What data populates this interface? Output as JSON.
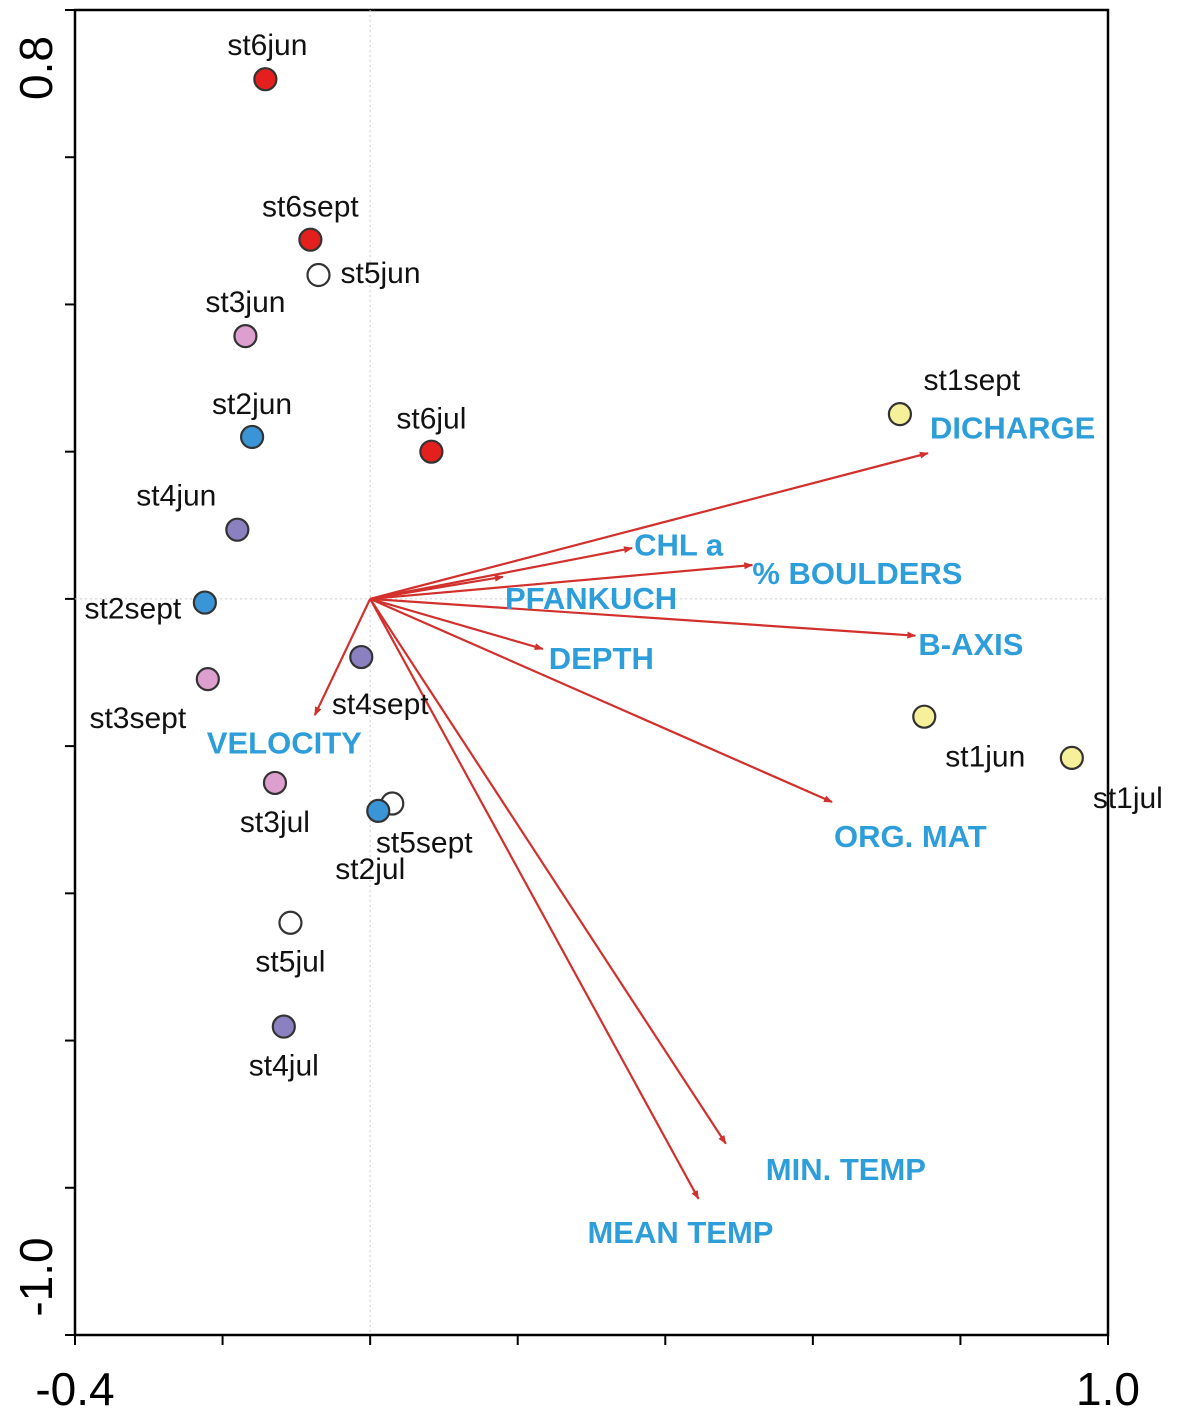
{
  "chart_data": {
    "type": "biplot",
    "xlim": [
      -0.4,
      1.0
    ],
    "ylim": [
      -1.0,
      0.8
    ],
    "xticks": [
      {
        "value": -0.4,
        "label": "-0.4"
      },
      {
        "value": 1.0,
        "label": "1.0"
      }
    ],
    "yticks": [
      0.8,
      {
        "value": -1.0,
        "label": "-1.0"
      }
    ],
    "xminor_ticks": [
      -0.2,
      0,
      0.2,
      0.4,
      0.6,
      0.8
    ],
    "yminor_ticks": [
      0.6,
      0.4,
      0.2,
      0,
      -0.2,
      -0.4,
      -0.6,
      -0.8
    ],
    "origin_lines": true,
    "arrow_color": "#d2302c",
    "arrow_label_color": "#2e9edb",
    "points": [
      {
        "name": "st6jun",
        "x": -0.142,
        "y": 0.706,
        "color": "#e3201d"
      },
      {
        "name": "st6sept",
        "x": -0.081,
        "y": 0.488,
        "color": "#e3201d"
      },
      {
        "name": "st5jun",
        "x": -0.07,
        "y": 0.44,
        "color": "#ffffff"
      },
      {
        "name": "st3jun",
        "x": -0.169,
        "y": 0.357,
        "color": "#dd9fcd"
      },
      {
        "name": "st2jun",
        "x": -0.16,
        "y": 0.22,
        "color": "#3a95d6"
      },
      {
        "name": "st6jul",
        "x": 0.083,
        "y": 0.2,
        "color": "#e3201d"
      },
      {
        "name": "st4jun",
        "x": -0.18,
        "y": 0.094,
        "color": "#8b80c0"
      },
      {
        "name": "st2sept",
        "x": -0.224,
        "y": -0.005,
        "color": "#3a95d6"
      },
      {
        "name": "st3sept",
        "x": -0.22,
        "y": -0.109,
        "color": "#dd9fcd"
      },
      {
        "name": "st4sept",
        "x": -0.012,
        "y": -0.079,
        "color": "#8b80c0"
      },
      {
        "name": "st3jul",
        "x": -0.129,
        "y": -0.25,
        "color": "#dd9fcd"
      },
      {
        "name": "st5sept",
        "x": 0.03,
        "y": -0.278,
        "color": "#ffffff"
      },
      {
        "name": "st2jul",
        "x": 0.011,
        "y": -0.288,
        "color": "#3a95d6"
      },
      {
        "name": "st5jul",
        "x": -0.108,
        "y": -0.44,
        "color": "#ffffff"
      },
      {
        "name": "st4jul",
        "x": -0.117,
        "y": -0.581,
        "color": "#8b80c0"
      },
      {
        "name": "st1sept",
        "x": 0.718,
        "y": 0.251,
        "color": "#f7f09a"
      },
      {
        "name": "st1jun",
        "x": 0.751,
        "y": -0.16,
        "color": "#f7f09a"
      },
      {
        "name": "st1jul",
        "x": 0.951,
        "y": -0.216,
        "color": "#f7f09a"
      }
    ],
    "arrows": [
      {
        "name": "DICHARGE",
        "x": 0.756,
        "y": 0.198
      },
      {
        "name": "CHL a",
        "x": 0.355,
        "y": 0.069
      },
      {
        "name": "% BOULDERS",
        "x": 0.518,
        "y": 0.046
      },
      {
        "name": "PFANKUCH",
        "x": 0.18,
        "y": 0.03
      },
      {
        "name": "B-AXIS",
        "x": 0.739,
        "y": -0.05
      },
      {
        "name": "DEPTH",
        "x": 0.234,
        "y": -0.068
      },
      {
        "name": "VELOCITY",
        "x": -0.075,
        "y": -0.158
      },
      {
        "name": "ORG. MAT",
        "x": 0.626,
        "y": -0.276
      },
      {
        "name": "MIN. TEMP",
        "x": 0.482,
        "y": -0.74
      },
      {
        "name": "MEAN TEMP",
        "x": 0.445,
        "y": -0.815
      }
    ]
  }
}
